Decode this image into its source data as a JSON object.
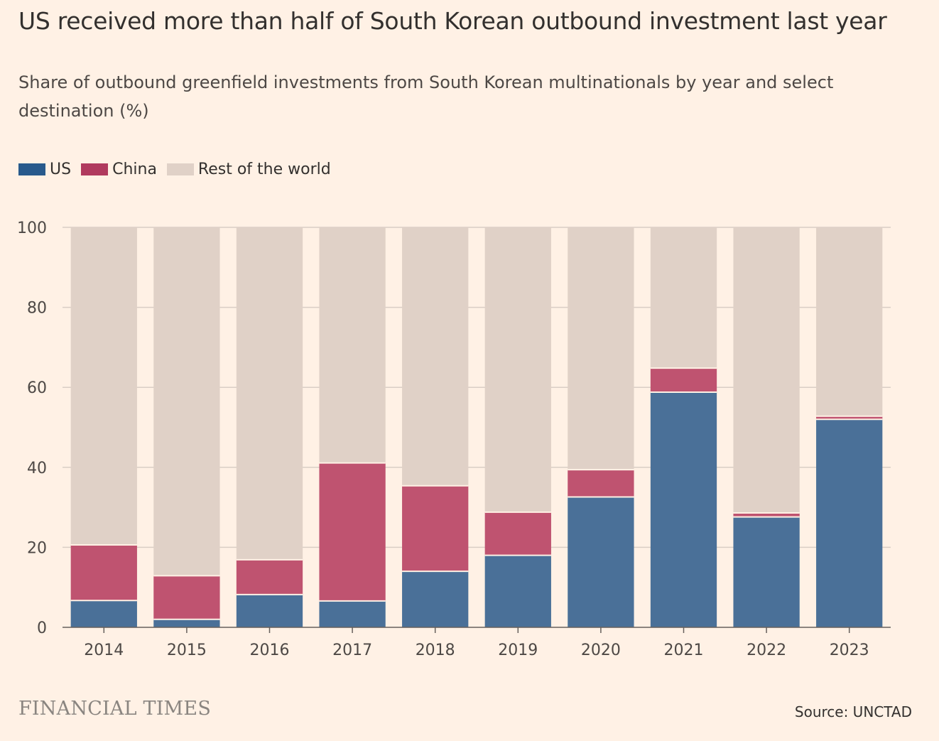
{
  "chart_data": {
    "type": "bar",
    "stacked": true,
    "title": "US received more than half of South Korean outbound investment last year",
    "subtitle": "Share of outbound greenfield investments from South Korean multinationals by year and select destination (%)",
    "categories": [
      "2014",
      "2015",
      "2016",
      "2017",
      "2018",
      "2019",
      "2020",
      "2021",
      "2022",
      "2023"
    ],
    "series": [
      {
        "name": "US",
        "color": "#4A7098",
        "values": [
          6.7,
          2.0,
          8.2,
          6.6,
          14.0,
          18.0,
          32.6,
          58.8,
          27.6,
          52.0
        ]
      },
      {
        "name": "China",
        "color": "#BF5370",
        "values": [
          13.9,
          10.9,
          8.7,
          34.5,
          21.4,
          10.8,
          6.8,
          6.0,
          1.0,
          0.8
        ]
      },
      {
        "name": "Rest of the world",
        "color": "#E0D1C7",
        "values": [
          79.4,
          87.1,
          83.1,
          58.9,
          64.6,
          71.2,
          60.6,
          35.2,
          71.4,
          47.2
        ]
      }
    ],
    "ylim": [
      0,
      100
    ],
    "yticks": [
      0,
      20,
      40,
      60,
      80,
      100
    ],
    "grid": true,
    "legend": "top-left"
  },
  "legend_swatch_colors": [
    "#285A8C",
    "#B03A5E",
    "#E0D1C7"
  ],
  "footer": {
    "logo": "FINANCIAL TIMES",
    "source": "Source: UNCTAD"
  }
}
